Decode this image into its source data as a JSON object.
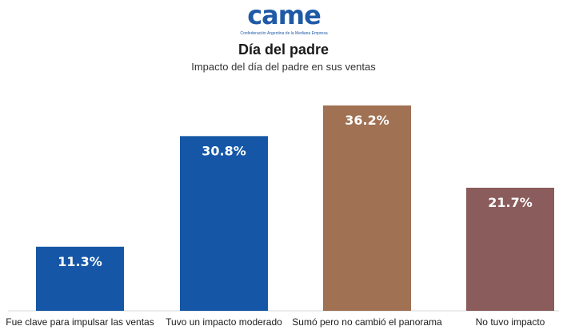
{
  "logo": {
    "text": "came",
    "tagline": "Confederación Argentina de la Mediana Empresa",
    "color": "#1f5aa6"
  },
  "header": {
    "title": "Día del padre",
    "subtitle": "Impacto del día del padre en sus ventas"
  },
  "chart_data": {
    "type": "bar",
    "title": "Día del padre",
    "subtitle": "Impacto del día del padre en sus ventas",
    "categories": [
      "Fue clave para impulsar las ventas",
      "Tuvo un impacto moderado",
      "Sumó pero no cambió el panorama",
      "No tuvo impacto"
    ],
    "values": [
      11.3,
      30.8,
      36.2,
      21.7
    ],
    "value_labels": [
      "11.3%",
      "30.8%",
      "36.2%",
      "21.7%"
    ],
    "colors": [
      "#1557a6",
      "#1557a6",
      "#a07152",
      "#8b5c5c"
    ],
    "xlabel": "",
    "ylabel": "",
    "ylim": [
      0,
      36.2
    ],
    "grid": false,
    "legend": "none"
  }
}
